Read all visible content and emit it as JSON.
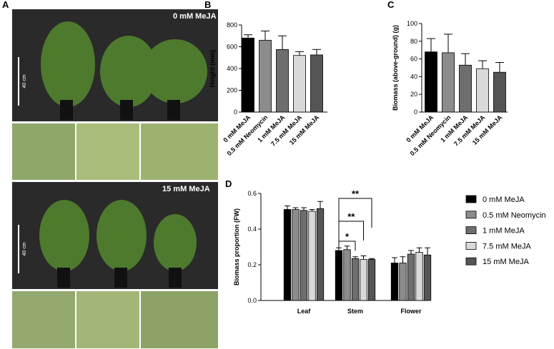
{
  "photo_panel": {
    "panel": "A",
    "top_label": "0 mM MeJA",
    "bottom_label": "15 mM MeJA",
    "scale_label": "40 cm"
  },
  "chart_data": [
    {
      "type": "bar",
      "panel": "B",
      "ylabel": "Height (mm)",
      "categories": [
        "0 mM MeJA",
        "0.5 mM Neomycin",
        "1 mM MeJA",
        "7.5 mM MeJA",
        "15 mM MeJA"
      ],
      "values": [
        680,
        660,
        575,
        520,
        525
      ],
      "errors": [
        30,
        85,
        125,
        35,
        50
      ],
      "colors": [
        "#000000",
        "#8c8c8c",
        "#6e6e6e",
        "#d9d9d9",
        "#555555"
      ],
      "ylim": [
        0,
        800
      ],
      "yticks": [
        0,
        200,
        400,
        600,
        800
      ]
    },
    {
      "type": "bar",
      "panel": "C",
      "ylabel": "Biomass (above-ground) (g)",
      "categories": [
        "0 mM MeJA",
        "0.5 mM Neomycin",
        "1 mM MeJA",
        "7.5 mM MeJA",
        "15 mM MeJA"
      ],
      "values": [
        68,
        67,
        53,
        49,
        45
      ],
      "errors": [
        15,
        21,
        13,
        9,
        11
      ],
      "colors": [
        "#000000",
        "#8c8c8c",
        "#6e6e6e",
        "#d9d9d9",
        "#555555"
      ],
      "ylim": [
        0,
        100
      ],
      "yticks": [
        0,
        20,
        40,
        60,
        80,
        100
      ]
    },
    {
      "type": "grouped_bar",
      "panel": "D",
      "ylabel": "Biomass proportion (FW)",
      "categories": [
        "Leaf",
        "Stem",
        "Flower"
      ],
      "series": [
        {
          "name": "0 mM MeJA",
          "color": "#000000",
          "values": [
            0.51,
            0.28,
            0.21
          ],
          "errors": [
            0.02,
            0.015,
            0.03
          ]
        },
        {
          "name": "0.5 mM Neomycin",
          "color": "#8c8c8c",
          "values": [
            0.51,
            0.285,
            0.21
          ],
          "errors": [
            0.01,
            0.02,
            0.035
          ]
        },
        {
          "name": "1 mM MeJA",
          "color": "#6e6e6e",
          "values": [
            0.505,
            0.235,
            0.26
          ],
          "errors": [
            0.015,
            0.01,
            0.02
          ]
        },
        {
          "name": "7.5 mM MeJA",
          "color": "#d9d9d9",
          "values": [
            0.5,
            0.23,
            0.27
          ],
          "errors": [
            0.01,
            0.02,
            0.025
          ]
        },
        {
          "name": "15 mM MeJA",
          "color": "#555555",
          "values": [
            0.515,
            0.23,
            0.255
          ],
          "errors": [
            0.04,
            0.005,
            0.04
          ]
        }
      ],
      "annotations": [
        "*",
        "**",
        "**"
      ],
      "ylim": [
        0,
        0.6
      ],
      "yticks": [
        {
          "value": 0,
          "label": "0.0"
        },
        0.2,
        0.4,
        0.6
      ]
    }
  ]
}
